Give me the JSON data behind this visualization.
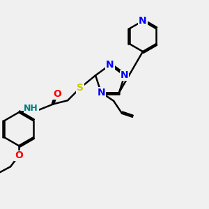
{
  "bg_color": "#f0f0f0",
  "bond_color": "#000000",
  "bond_width": 1.8,
  "atom_colors": {
    "N": "#0000ff",
    "S": "#cccc00",
    "O": "#ff0000",
    "H": "#008080",
    "C": "#000000"
  },
  "font_size": 9
}
